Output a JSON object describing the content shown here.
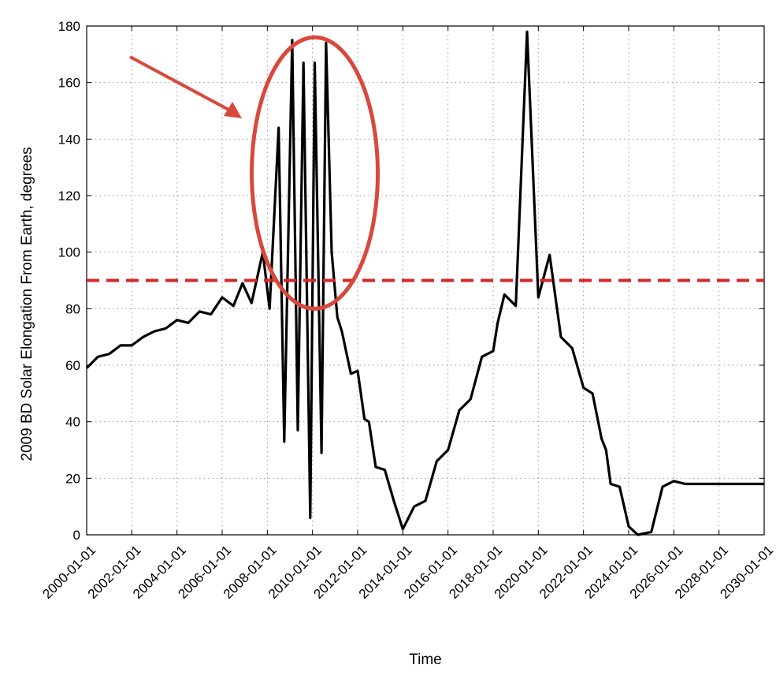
{
  "chart_data": {
    "type": "line",
    "title": "",
    "xlabel": "Time",
    "ylabel": "2009 BD Solar Elongation From Earth, degrees",
    "xlim": [
      2000.0,
      2030.0
    ],
    "ylim": [
      0,
      180
    ],
    "grid": true,
    "x_ticks": [
      2000,
      2002,
      2004,
      2006,
      2008,
      2010,
      2012,
      2014,
      2016,
      2018,
      2020,
      2022,
      2024,
      2026,
      2028,
      2030
    ],
    "x_tick_labels": [
      "2000-01-01",
      "2002-01-01",
      "2004-01-01",
      "2006-01-01",
      "2008-01-01",
      "2010-01-01",
      "2012-01-01",
      "2014-01-01",
      "2016-01-01",
      "2018-01-01",
      "2020-01-01",
      "2022-01-01",
      "2024-01-01",
      "2026-01-01",
      "2028-01-01",
      "2030-01-01"
    ],
    "y_ticks": [
      0,
      20,
      40,
      60,
      80,
      100,
      120,
      140,
      160,
      180
    ],
    "y_tick_labels": [
      "0",
      "20",
      "40",
      "60",
      "80",
      "100",
      "120",
      "140",
      "160",
      "180"
    ],
    "series": [
      {
        "color": "#000000",
        "x": [
          2000.0,
          2000.5,
          2001.0,
          2001.5,
          2002.0,
          2002.5,
          2003.0,
          2003.5,
          2004.0,
          2004.5,
          2005.0,
          2005.5,
          2006.0,
          2006.5,
          2006.9,
          2007.3,
          2007.8,
          2008.1,
          2008.5,
          2008.75,
          2009.1,
          2009.35,
          2009.6,
          2009.9,
          2010.1,
          2010.4,
          2010.6,
          2010.85,
          2011.1,
          2011.3,
          2011.7,
          2012.0,
          2012.3,
          2012.5,
          2012.8,
          2013.2,
          2013.6,
          2014.0,
          2014.5,
          2015.0,
          2015.5,
          2016.0,
          2016.5,
          2017.0,
          2017.5,
          2018.0,
          2018.2,
          2018.5,
          2019.0,
          2019.5,
          2020.0,
          2020.5,
          2021.0,
          2021.5,
          2022.0,
          2022.4,
          2022.8,
          2023.0,
          2023.2,
          2023.6,
          2024.0,
          2024.4,
          2025.0,
          2025.5,
          2026.0,
          2026.5,
          2027.0,
          2027.5,
          2028.0,
          2028.3,
          2028.6,
          2029.0,
          2029.5,
          2030.0
        ],
        "y": [
          59,
          63,
          64,
          67,
          67,
          70,
          72,
          73,
          76,
          75,
          79,
          78,
          84,
          81,
          89,
          82,
          100,
          80,
          144,
          33,
          175,
          37,
          167,
          6,
          167,
          29,
          174,
          100,
          77,
          72,
          57,
          58,
          41,
          40,
          24,
          23,
          12,
          2,
          10,
          12,
          26,
          30,
          44,
          48,
          63,
          65,
          75,
          85,
          81,
          178,
          84,
          99,
          70,
          66,
          52,
          50,
          34,
          30,
          18,
          17,
          3,
          0,
          1,
          17,
          19,
          18,
          18,
          18,
          18,
          18,
          18,
          18,
          18,
          18
        ]
      }
    ],
    "reference_lines": [
      {
        "type": "horizontal",
        "y": 90,
        "color": "#d62728",
        "style": "dashed"
      }
    ],
    "annotation_color": "#d9483b"
  }
}
